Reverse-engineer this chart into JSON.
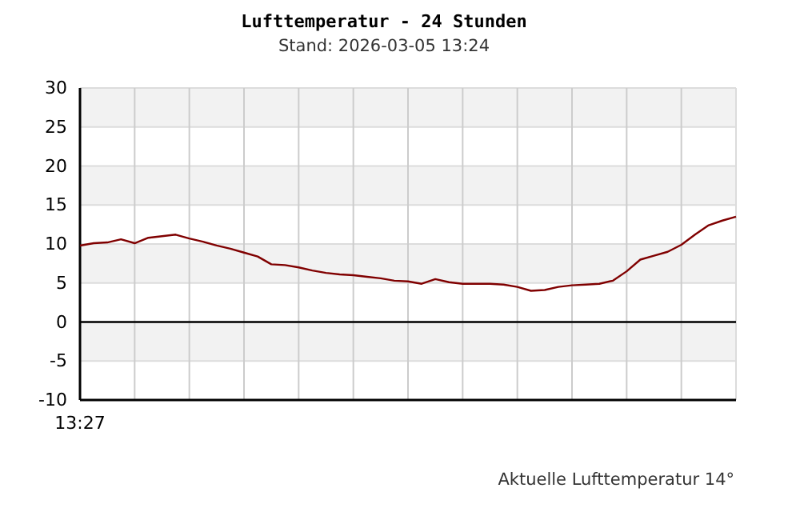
{
  "chart_data": {
    "type": "line",
    "title": "Lufttemperatur - 24 Stunden",
    "subtitle": "Stand: 2026-03-05 13:24",
    "annotations": [
      "13:27",
      "Aktuelle Lufttemperatur 14°"
    ],
    "categories": [
      null,
      null,
      null,
      null,
      null,
      null,
      null,
      null,
      null,
      null,
      null,
      null,
      null,
      null,
      null,
      null,
      null,
      null,
      null,
      null,
      null,
      null,
      null,
      null,
      null,
      null,
      null,
      null,
      null,
      null,
      null,
      null,
      null,
      null,
      null,
      null,
      null,
      null,
      null,
      null,
      null,
      null,
      null,
      null,
      null,
      null,
      null,
      null,
      null
    ],
    "ylim": [
      -10,
      30
    ],
    "yticks": [
      -10,
      -5,
      0,
      5,
      10,
      15,
      20,
      25,
      30
    ],
    "grid": true,
    "ref_lines": [
      {
        "axis": "y",
        "value": 0,
        "color": "#000000"
      }
    ],
    "series": [
      {
        "color": "#800000",
        "values": [
          9.8,
          10.1,
          10.2,
          10.6,
          10.1,
          10.8,
          11,
          11.2,
          10.7,
          10.3,
          9.8,
          9.4,
          8.9,
          8.4,
          7.4,
          7.3,
          7,
          6.6,
          6.3,
          6.1,
          6,
          5.8,
          5.6,
          5.3,
          5.2,
          4.9,
          5.5,
          5.1,
          4.9,
          4.9,
          4.9,
          4.8,
          4.5,
          4,
          4.1,
          4.5,
          4.7,
          4.8,
          4.9,
          5.3,
          6.5,
          8,
          8.5,
          9,
          9.9,
          11.2,
          12.4,
          13,
          13.5
        ]
      }
    ]
  }
}
